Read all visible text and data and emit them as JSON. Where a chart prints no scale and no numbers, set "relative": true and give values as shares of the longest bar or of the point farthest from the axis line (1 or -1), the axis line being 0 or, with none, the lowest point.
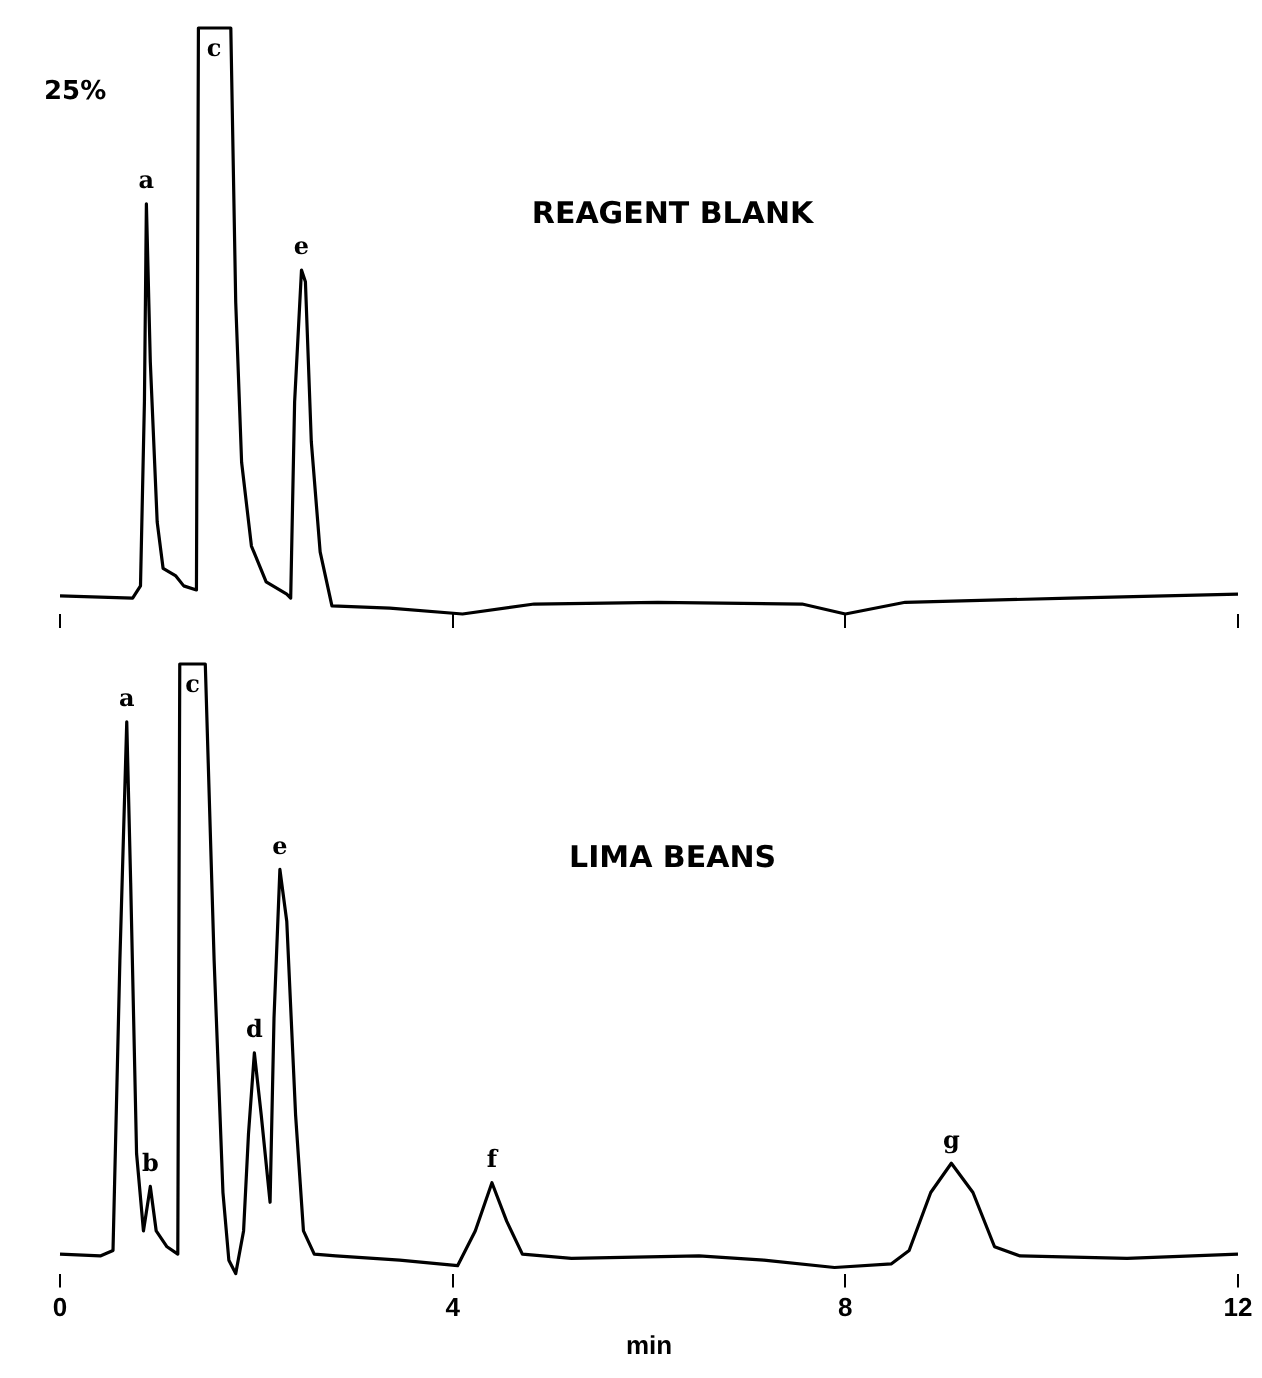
{
  "chart_data": [
    {
      "type": "line",
      "title": "REAGENT BLANK",
      "relative": true,
      "xlim": [
        0,
        12
      ],
      "xticks": [
        {
          "value": 0,
          "label": null
        },
        {
          "value": 4,
          "label": null
        },
        {
          "value": 8,
          "label": null
        },
        {
          "value": 12,
          "label": null
        }
      ],
      "tick_labels": false,
      "grid": false,
      "legend": false,
      "marker": "none",
      "line_style": "solid",
      "annotations": [
        "25%",
        {
          "text": "a",
          "x": 0.88,
          "y": 0.7
        },
        {
          "text": "c",
          "x": 1.57,
          "y": 1
        },
        {
          "text": "e",
          "x": 2.46,
          "y": 0.587
        }
      ],
      "series": [
        {
          "color": "#000000",
          "x": [
            0,
            0.74,
            0.82,
            0.86,
            0.88,
            0.92,
            0.99,
            1.05,
            1.18,
            1.26,
            1.39,
            1.41,
            1.57,
            1.74,
            1.79,
            1.85,
            1.95,
            2.1,
            2.31,
            2.35,
            2.39,
            2.46,
            2.5,
            2.56,
            2.65,
            2.77,
            3.36,
            4.1,
            4.83,
            6.09,
            7.56,
            8.0,
            8.61,
            10.29,
            12.0
          ],
          "values": [
            0.031,
            0.027,
            0.048,
            0.362,
            0.7,
            0.43,
            0.157,
            0.078,
            0.065,
            0.048,
            0.041,
            1,
            1,
            1,
            0.532,
            0.259,
            0.116,
            0.055,
            0.034,
            0.027,
            0.362,
            0.587,
            0.567,
            0.294,
            0.106,
            0.014,
            0.01,
            0,
            0.017,
            0.02,
            0.017,
            0,
            0.02,
            0.027,
            0.034
          ]
        }
      ]
    },
    {
      "type": "line",
      "title": "LIMA BEANS",
      "xlabel": "min",
      "relative": true,
      "xlim": [
        0,
        12
      ],
      "xticks": [
        0,
        4,
        8,
        12
      ],
      "tick_labels": "x",
      "grid": false,
      "legend": false,
      "marker": "none",
      "line_style": "solid",
      "annotations": [
        {
          "text": "a",
          "x": 0.68,
          "y": 0.905
        },
        {
          "text": "b",
          "x": 0.92,
          "y": 0.143
        },
        {
          "text": "c",
          "x": 1.35,
          "y": 1
        },
        {
          "text": "d",
          "x": 1.98,
          "y": 0.362
        },
        {
          "text": "e",
          "x": 2.24,
          "y": 0.663
        },
        {
          "text": "f",
          "x": 4.4,
          "y": 0.149
        },
        {
          "text": "g",
          "x": 9.08,
          "y": 0.181
        }
      ],
      "series": [
        {
          "color": "#000000",
          "x": [
            0,
            0.41,
            0.54,
            0.61,
            0.68,
            0.72,
            0.78,
            0.85,
            0.92,
            0.98,
            1.09,
            1.2,
            1.22,
            1.35,
            1.48,
            1.57,
            1.66,
            1.72,
            1.79,
            1.87,
            1.92,
            1.98,
            2.05,
            2.14,
            2.18,
            2.24,
            2.31,
            2.4,
            2.48,
            2.59,
            2.81,
            3.46,
            4.05,
            4.23,
            4.4,
            4.55,
            4.71,
            5.21,
            6.51,
            7.17,
            7.89,
            8.47,
            8.65,
            8.87,
            9.08,
            9.3,
            9.52,
            9.78,
            10.87,
            12
          ],
          "values": [
            0.032,
            0.029,
            0.038,
            0.514,
            0.905,
            0.641,
            0.197,
            0.07,
            0.143,
            0.07,
            0.044,
            0.032,
            1,
            1,
            1,
            0.514,
            0.133,
            0.022,
            0,
            0.07,
            0.229,
            0.362,
            0.26,
            0.117,
            0.419,
            0.663,
            0.578,
            0.26,
            0.07,
            0.032,
            0.029,
            0.022,
            0.013,
            0.07,
            0.149,
            0.086,
            0.032,
            0.025,
            0.029,
            0.022,
            0.01,
            0.016,
            0.038,
            0.133,
            0.181,
            0.133,
            0.044,
            0.029,
            0.025,
            0.032
          ]
        }
      ]
    }
  ]
}
